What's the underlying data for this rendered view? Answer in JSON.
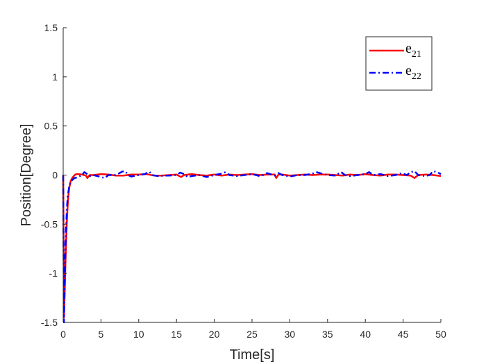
{
  "chart_data": {
    "type": "line",
    "xlabel": "Time[s]",
    "ylabel": "Position[Degree]",
    "xlim": [
      0,
      50
    ],
    "ylim": [
      -1.5,
      1.5
    ],
    "xticks": [
      0,
      5,
      10,
      15,
      20,
      25,
      30,
      35,
      40,
      45,
      50
    ],
    "xtick_labels": [
      "0",
      "5",
      "10",
      "15",
      "20",
      "25",
      "30",
      "35",
      "40",
      "45",
      "50"
    ],
    "yticks": [
      -1.5,
      -1,
      -0.5,
      0,
      0.5,
      1,
      1.5
    ],
    "ytick_labels": [
      "-1.5",
      "-1",
      "-0.5",
      "0",
      "0.5",
      "1",
      "1.5"
    ],
    "grid": false,
    "legend_position": "top-right",
    "series": [
      {
        "name": "e21",
        "legend_base": "e",
        "legend_sub": "21",
        "color": "#ff0000",
        "style": "solid",
        "x": [
          0,
          0.1,
          0.2,
          0.3,
          0.4,
          0.5,
          0.6,
          0.7,
          0.8,
          1.0,
          1.2,
          1.4,
          1.6,
          1.8,
          2.0,
          2.5,
          3.0,
          3.2,
          3.5,
          4.0,
          5.0,
          6.0,
          7.0,
          8.0,
          9.0,
          10.0,
          11.0,
          12.0,
          13.0,
          14.0,
          15.0,
          15.6,
          16.0,
          17.0,
          18.0,
          19.0,
          20.0,
          21.0,
          22.0,
          23.0,
          24.0,
          25.0,
          26.0,
          27.0,
          28.0,
          28.2,
          28.5,
          29.0,
          30.0,
          31.0,
          32.0,
          33.0,
          34.0,
          35.0,
          36.0,
          37.0,
          38.0,
          39.0,
          40.0,
          41.0,
          42.0,
          43.0,
          44.0,
          45.0,
          46.0,
          46.5,
          47.0,
          48.0,
          49.0,
          50.0
        ],
        "y": [
          0,
          -1.45,
          -1.2,
          -0.9,
          -0.65,
          -0.45,
          -0.3,
          -0.2,
          -0.13,
          -0.06,
          -0.03,
          -0.01,
          0.005,
          0.01,
          0.01,
          0.005,
          -0.005,
          -0.03,
          0.0,
          0.0,
          0.01,
          0.005,
          -0.005,
          -0.005,
          0.005,
          0.005,
          0.01,
          -0.005,
          -0.005,
          0.0,
          0.005,
          -0.02,
          0.0,
          0.01,
          0.0,
          -0.005,
          0.005,
          -0.005,
          0.005,
          0.0,
          0.005,
          0.01,
          0.0,
          0.005,
          0.005,
          -0.03,
          0.005,
          0.005,
          -0.005,
          0.0,
          0.005,
          0.0,
          0.005,
          0.005,
          0.0,
          -0.005,
          0.005,
          0.0,
          0.01,
          0.0,
          -0.005,
          0.005,
          0.005,
          0.0,
          -0.005,
          -0.03,
          0.0,
          0.005,
          0.0,
          -0.01
        ]
      },
      {
        "name": "e22",
        "legend_base": "e",
        "legend_sub": "22",
        "color": "#0000ff",
        "style": "dashdot",
        "x": [
          0,
          0.1,
          0.2,
          0.3,
          0.4,
          0.5,
          0.6,
          0.8,
          1.0,
          1.2,
          1.5,
          1.8,
          2.0,
          2.5,
          2.8,
          3.1,
          3.5,
          4.0,
          4.5,
          5.0,
          5.5,
          6.0,
          7.0,
          7.8,
          8.2,
          8.6,
          9.0,
          10.0,
          10.8,
          11.4,
          11.8,
          12.5,
          13.5,
          14.0,
          15.0,
          15.5,
          16.0,
          16.5,
          17.0,
          18.0,
          19.0,
          20.0,
          21.0,
          21.5,
          22.0,
          23.0,
          24.0,
          25.0,
          26.0,
          26.5,
          27.0,
          28.0,
          28.5,
          29.0,
          30.0,
          31.0,
          32.0,
          33.0,
          33.5,
          34.0,
          35.0,
          36.0,
          36.8,
          37.3,
          38.0,
          39.0,
          40.0,
          40.5,
          41.0,
          42.0,
          43.0,
          44.0,
          44.8,
          45.5,
          46.0,
          46.5,
          47.0,
          48.0,
          48.5,
          49.0,
          49.5,
          50.0
        ],
        "y": [
          0,
          -1.5,
          -1.1,
          -0.75,
          -0.5,
          -0.33,
          -0.22,
          -0.11,
          -0.07,
          -0.05,
          -0.03,
          -0.025,
          -0.02,
          0.0,
          0.03,
          0.015,
          -0.01,
          0.0,
          -0.01,
          -0.02,
          -0.03,
          0.0,
          0.0,
          0.035,
          0.04,
          0.0,
          -0.015,
          0.0,
          0.01,
          0.035,
          0.0,
          -0.01,
          -0.005,
          -0.005,
          0.0,
          0.025,
          0.01,
          -0.02,
          -0.01,
          0.0,
          -0.02,
          0.0,
          0.015,
          0.03,
          0.0,
          -0.01,
          0.0,
          0.01,
          -0.01,
          0.0,
          0.02,
          -0.005,
          0.02,
          0.0,
          -0.015,
          0.0,
          0.0,
          0.015,
          0.03,
          0.02,
          0.0,
          -0.005,
          0.03,
          0.0,
          -0.01,
          0.0,
          0.01,
          0.03,
          0.0,
          0.01,
          -0.01,
          0.0,
          0.02,
          0.0,
          0.03,
          0.04,
          0.0,
          -0.01,
          0.0,
          0.04,
          0.03,
          0.01
        ]
      }
    ]
  }
}
